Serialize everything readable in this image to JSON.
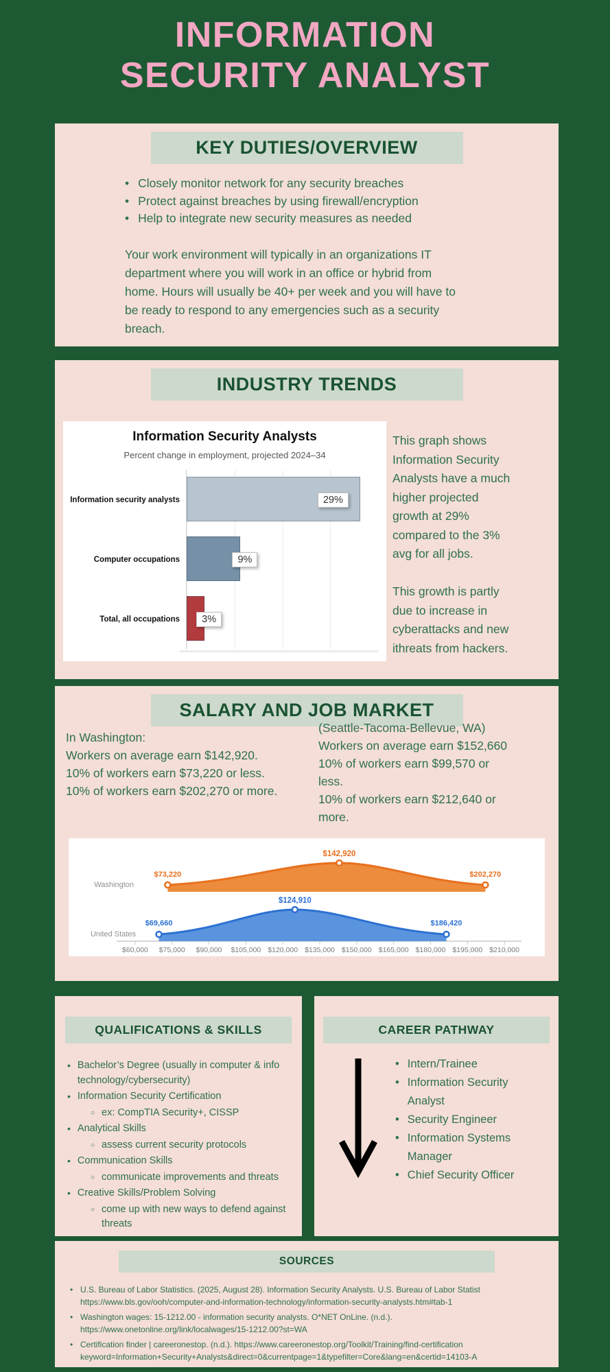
{
  "page": {
    "title_line1": "INFORMATION",
    "title_line2": "SECURITY ANALYST"
  },
  "colors": {
    "page_background": "#1d5a33",
    "title_pink": "#f2a7c3",
    "panel_background": "#f4ded7",
    "badge_background": "#cdd9cc",
    "heading_green": "#1a5332",
    "body_green": "#2f6f50"
  },
  "key_duties": {
    "heading": "KEY DUTIES/OVERVIEW",
    "bullets": [
      "Closely monitor network for any security breaches",
      "Protect against breaches by using firewall/encryption",
      "Help to integrate new security measures as needed"
    ],
    "paragraph": "Your work environment will typically in an organizations IT\ndepartment where you will work in an office or hybrid from\nhome. Hours will usually be 40+ per week and you will have to\nbe ready to respond to any emergencies such as a security\nbreach."
  },
  "industry_trends": {
    "heading": "INDUSTRY TRENDS",
    "commentary": "This graph shows\nInformation Security\nAnalysts have a much\nhigher projected\ngrowth at 29%\ncompared to the 3%\navg for all jobs.\n\nThis growth is partly\ndue to increase in\ncyberattacks and new\nithreats from hackers."
  },
  "salary": {
    "heading": "SALARY AND JOB MARKET",
    "washington_text": "In Washington:\nWorkers on average earn $142,920.\n10% of workers earn $73,220 or less.\n10% of workers earn $202,270 or more.",
    "seattle_text": "(Seattle-Tacoma-Bellevue, WA)\nWorkers on average earn $152,660\n10% of workers earn $99,570 or\nless.\n10% of workers earn $212,640 or\nmore."
  },
  "qualifications": {
    "heading": "QUALIFICATIONS & SKILLS",
    "items": [
      {
        "level": 1,
        "text": "Bachelor’s Degree (usually in computer & info technology/cybersecurity)"
      },
      {
        "level": 1,
        "text": "Information Security Certification"
      },
      {
        "level": 2,
        "text": "ex: CompTIA Security+, CISSP"
      },
      {
        "level": 1,
        "text": "Analytical Skills"
      },
      {
        "level": 2,
        "text": "assess current security protocols"
      },
      {
        "level": 1,
        "text": "Communication Skills"
      },
      {
        "level": 2,
        "text": "communicate improvements and threats"
      },
      {
        "level": 1,
        "text": "Creative Skills/Problem Solving"
      },
      {
        "level": 2,
        "text": "come up with new ways to defend against threats"
      }
    ]
  },
  "career": {
    "heading": "CAREER PATHWAY",
    "items": [
      "Intern/Trainee",
      "Information Security Analyst",
      "Security Engineer",
      "Information Systems Manager",
      "Chief Security Officer"
    ]
  },
  "sources": {
    "heading": "SOURCES",
    "items": [
      {
        "line1": "U.S. Bureau of Labor Statistics. (2025, August 28). Information Security Analysts. U.S. Bureau of Labor Statist",
        "line2": "https://www.bls.gov/ooh/computer-and-information-technology/information-security-analysts.htm#tab-1"
      },
      {
        "line1": "Washington wages: 15-1212.00 - information security analysts. O*NET OnLine. (n.d.).",
        "line2": "https://www.onetonline.org/link/localwages/15-1212.00?st=WA"
      },
      {
        "line1": "Certification finder | careeronestop. (n.d.). https://www.careeronestop.org/Toolkit/Training/find-certification",
        "line2": "keyword=Information+Security+Analysts&direct=0&currentpage=1&typefilter=Core&lang=en&certid=14103-A"
      }
    ]
  },
  "chart_data": [
    {
      "type": "bar",
      "orientation": "horizontal",
      "title": "Information Security Analysts",
      "subtitle": "Percent change in employment, projected 2024–34",
      "categories": [
        "Information security analysts",
        "Computer occupations",
        "Total, all occupations"
      ],
      "values": [
        29,
        9,
        3
      ],
      "value_labels": [
        "29%",
        "9%",
        "3%"
      ],
      "bar_colors": [
        "#b8c5d1",
        "#7590a7",
        "#b23b3e"
      ],
      "xlim": [
        0,
        32
      ],
      "gridline_interval": 8,
      "grid": true,
      "legend": false
    },
    {
      "type": "area",
      "title": "Annual wage distribution (10th percentile, median, 90th percentile)",
      "series": [
        {
          "name": "Washington",
          "color": "#e8701e",
          "fill": "#ec8c3c",
          "p10": 73220,
          "median": 142920,
          "p90": 202270,
          "point_labels": [
            "$73,220",
            "$142,920",
            "$202,270"
          ]
        },
        {
          "name": "United States",
          "color": "#2c71d2",
          "fill": "#5b94de",
          "p10": 69660,
          "median": 124910,
          "p90": 186420,
          "point_labels": [
            "$69,660",
            "$124,910",
            "$186,420"
          ]
        }
      ],
      "x_tick_labels": [
        "$60,000",
        "$75,000",
        "$90,000",
        "$105,000",
        "$120,000",
        "$135,000",
        "$150,000",
        "$165,000",
        "$180,000",
        "$195,000",
        "$210,000"
      ],
      "x_tick_values": [
        60000,
        75000,
        90000,
        105000,
        120000,
        135000,
        150000,
        165000,
        180000,
        195000,
        210000
      ],
      "xlim": [
        52500,
        217500
      ],
      "legend": false
    }
  ]
}
